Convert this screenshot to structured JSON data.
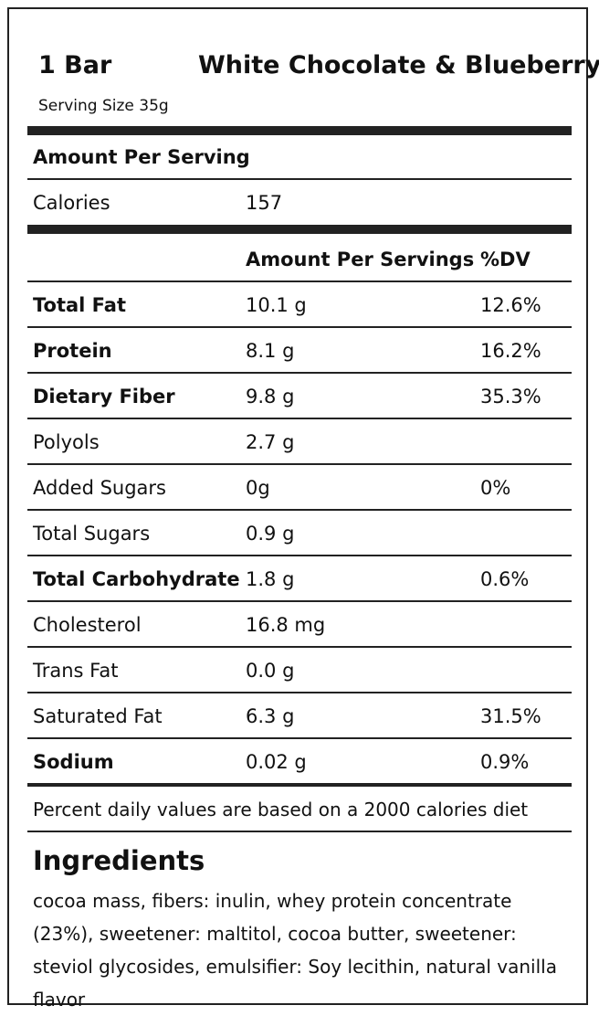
{
  "header": {
    "quantity": "1 Bar",
    "product_name": "White Chocolate & Blueberry",
    "serving_size": "Serving Size 35g"
  },
  "amount_per_serving_label": "Amount Per Serving",
  "calories": {
    "label": "Calories",
    "value": "157"
  },
  "columns": {
    "amount": "Amount Per Servings",
    "dv": "%DV"
  },
  "nutrients": [
    {
      "label": "Total Fat",
      "amount": "10.1 g",
      "dv": "12.6%"
    },
    {
      "label": "Protein",
      "amount": "8.1 g",
      "dv": "16.2%"
    },
    {
      "label": "Dietary Fiber",
      "amount": "9.8 g",
      "dv": "35.3%"
    },
    {
      "label": "Polyols",
      "amount": "2.7 g",
      "dv": ""
    },
    {
      "label": "Added Sugars",
      "amount": "0g",
      "dv": "0%"
    },
    {
      "label": "Total Sugars",
      "amount": "0.9 g",
      "dv": ""
    },
    {
      "label": "Total Carbohydrate",
      "amount": "1.8 g",
      "dv": "0.6%"
    },
    {
      "label": "Cholesterol",
      "amount": "16.8 mg",
      "dv": ""
    },
    {
      "label": "Trans Fat",
      "amount": "0.0 g",
      "dv": ""
    },
    {
      "label": "Saturated Fat",
      "amount": "6.3 g",
      "dv": "31.5%"
    },
    {
      "label": "Sodium",
      "amount": "0.02 g",
      "dv": "0.9%"
    }
  ],
  "footnote": "Percent daily values are based on a 2000 calories diet",
  "ingredients": {
    "title": "Ingredients",
    "text": "cocoa mass, fibers: inulin, whey protein concentrate (23%), sweetener: maltitol, cocoa butter, sweetener: steviol glycosides, emulsifier: Soy lecithin, natural vanilla flavor"
  }
}
